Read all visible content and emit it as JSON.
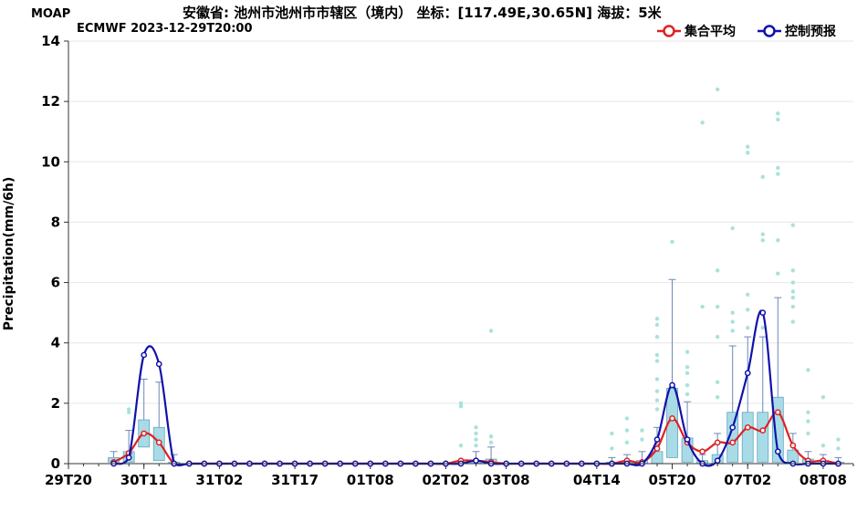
{
  "header": {
    "brand": "MOAP",
    "title": "安徽省: 池州市池州市市辖区（境内） 坐标：[117.49E,30.65N] 海拔：5米",
    "subtitle": "ECMWF 2023-12-29T20:00"
  },
  "legend": [
    {
      "name": "集合平均",
      "color": "#dd2222"
    },
    {
      "name": "控制预报",
      "color": "#1111aa"
    }
  ],
  "colors": {
    "box_fill": "#a8dbe6",
    "box_stroke": "#5fa6c2",
    "whisker": "#6b88b8",
    "outlier": "#a9e2da",
    "grid": "#e6e6e6"
  },
  "chart_data": {
    "type": "box-line",
    "ylabel": "Precipitation(mm/6h)",
    "ylim": [
      0,
      14
    ],
    "yticks": [
      0,
      2,
      4,
      6,
      8,
      10,
      12,
      14
    ],
    "xlim": [
      0,
      52
    ],
    "xtick_labels": [
      {
        "x": 0,
        "label": "29T20"
      },
      {
        "x": 5,
        "label": "30T11"
      },
      {
        "x": 10,
        "label": "31T02"
      },
      {
        "x": 15,
        "label": "31T17"
      },
      {
        "x": 20,
        "label": "01T08"
      },
      {
        "x": 25,
        "label": "02T02"
      },
      {
        "x": 29,
        "label": "03T08"
      },
      {
        "x": 35,
        "label": "04T14"
      },
      {
        "x": 40,
        "label": "05T20"
      },
      {
        "x": 45,
        "label": "07T02"
      },
      {
        "x": 50,
        "label": "08T08"
      }
    ],
    "boxes": [
      {
        "x": 3,
        "q1": 0.05,
        "q3": 0.2,
        "wlow": 0,
        "whigh": 0.4,
        "outliers": []
      },
      {
        "x": 4,
        "q1": 0.05,
        "q3": 0.4,
        "wlow": 0,
        "whigh": 1.1,
        "outliers": [
          1.7,
          1.8
        ]
      },
      {
        "x": 5,
        "q1": 0.55,
        "q3": 1.45,
        "wlow": 0.2,
        "whigh": 2.8,
        "outliers": [
          3.6
        ]
      },
      {
        "x": 6,
        "q1": 0.1,
        "q3": 1.2,
        "wlow": 0,
        "whigh": 2.7,
        "outliers": []
      },
      {
        "x": 7,
        "q1": 0,
        "q3": 0.05,
        "wlow": 0,
        "whigh": 0.3,
        "outliers": []
      },
      {
        "x": 26,
        "q1": 0,
        "q3": 0.05,
        "wlow": 0,
        "whigh": 0.1,
        "outliers": [
          0.6,
          1.9,
          2.0
        ]
      },
      {
        "x": 27,
        "q1": 0,
        "q3": 0.1,
        "wlow": 0,
        "whigh": 0.4,
        "outliers": [
          0.6,
          0.8,
          1.0,
          1.2
        ]
      },
      {
        "x": 28,
        "q1": 0,
        "q3": 0.15,
        "wlow": 0,
        "whigh": 0.55,
        "outliers": [
          0.7,
          0.9,
          4.4
        ]
      },
      {
        "x": 36,
        "q1": 0,
        "q3": 0.05,
        "wlow": 0,
        "whigh": 0.2,
        "outliers": [
          0.5,
          1.0
        ]
      },
      {
        "x": 37,
        "q1": 0,
        "q3": 0.05,
        "wlow": 0,
        "whigh": 0.3,
        "outliers": [
          0.7,
          1.1,
          1.5
        ]
      },
      {
        "x": 38,
        "q1": 0,
        "q3": 0.1,
        "wlow": 0,
        "whigh": 0.4,
        "outliers": [
          0.8,
          1.1
        ]
      },
      {
        "x": 39,
        "q1": 0,
        "q3": 0.4,
        "wlow": 0,
        "whigh": 1.2,
        "outliers": [
          1.8,
          2.1,
          2.4,
          2.8,
          3.4,
          3.6,
          4.2,
          4.6,
          4.8
        ]
      },
      {
        "x": 40,
        "q1": 0.2,
        "q3": 2.5,
        "wlow": 0,
        "whigh": 6.1,
        "outliers": [
          7.35
        ]
      },
      {
        "x": 41,
        "q1": 0.05,
        "q3": 0.85,
        "wlow": 0,
        "whigh": 2.05,
        "outliers": [
          2.3,
          2.6,
          3.0,
          3.2,
          3.7
        ]
      },
      {
        "x": 42,
        "q1": 0,
        "q3": 0.1,
        "wlow": 0,
        "whigh": 0.3,
        "outliers": [
          5.2,
          11.3
        ]
      },
      {
        "x": 43,
        "q1": 0,
        "q3": 0.3,
        "wlow": 0,
        "whigh": 1.0,
        "outliers": [
          2.2,
          2.7,
          4.2,
          5.2,
          6.4,
          12.4
        ]
      },
      {
        "x": 44,
        "q1": 0.05,
        "q3": 1.7,
        "wlow": 0,
        "whigh": 3.9,
        "outliers": [
          4.4,
          4.7,
          5.0,
          7.8
        ]
      },
      {
        "x": 45,
        "q1": 0.05,
        "q3": 1.7,
        "wlow": 0,
        "whigh": 4.2,
        "outliers": [
          4.5,
          5.1,
          5.6,
          10.3,
          10.5
        ]
      },
      {
        "x": 46,
        "q1": 0.05,
        "q3": 1.7,
        "wlow": 0,
        "whigh": 4.2,
        "outliers": [
          4.5,
          7.4,
          7.6,
          9.5
        ]
      },
      {
        "x": 47,
        "q1": 0.05,
        "q3": 2.2,
        "wlow": 0,
        "whigh": 5.5,
        "outliers": [
          6.3,
          7.4,
          9.6,
          9.8,
          11.4,
          11.6
        ]
      },
      {
        "x": 48,
        "q1": 0.05,
        "q3": 0.45,
        "wlow": 0,
        "whigh": 1.0,
        "outliers": [
          4.7,
          5.2,
          5.5,
          5.7,
          6.0,
          6.4,
          7.9
        ]
      },
      {
        "x": 49,
        "q1": 0,
        "q3": 0.15,
        "wlow": 0,
        "whigh": 0.4,
        "outliers": [
          1.0,
          1.4,
          1.7,
          3.1
        ]
      },
      {
        "x": 50,
        "q1": 0,
        "q3": 0.1,
        "wlow": 0,
        "whigh": 0.3,
        "outliers": [
          0.6,
          2.2
        ]
      },
      {
        "x": 51,
        "q1": 0,
        "q3": 0.05,
        "wlow": 0,
        "whigh": 0.2,
        "outliers": [
          0.5,
          0.8
        ]
      }
    ],
    "series": [
      {
        "name": "集合平均",
        "x": [
          3,
          4,
          5,
          6,
          7,
          8,
          9,
          10,
          11,
          12,
          13,
          14,
          15,
          16,
          17,
          18,
          19,
          20,
          21,
          22,
          23,
          24,
          25,
          26,
          27,
          28,
          29,
          30,
          31,
          32,
          33,
          34,
          35,
          36,
          37,
          38,
          39,
          40,
          41,
          42,
          43,
          44,
          45,
          46,
          47,
          48,
          49,
          50,
          51
        ],
        "values": [
          0.05,
          0.35,
          1.0,
          0.7,
          0,
          0,
          0,
          0,
          0,
          0,
          0,
          0,
          0,
          0,
          0,
          0,
          0,
          0,
          0,
          0,
          0,
          0,
          0,
          0.1,
          0.1,
          0.05,
          0,
          0,
          0,
          0,
          0,
          0,
          0,
          0,
          0.1,
          0.05,
          0.5,
          1.5,
          0.7,
          0.4,
          0.7,
          0.7,
          1.2,
          1.1,
          1.7,
          0.6,
          0.1,
          0.1,
          0
        ]
      },
      {
        "name": "控制预报",
        "x": [
          3,
          4,
          5,
          6,
          7,
          8,
          9,
          10,
          11,
          12,
          13,
          14,
          15,
          16,
          17,
          18,
          19,
          20,
          21,
          22,
          23,
          24,
          25,
          26,
          27,
          28,
          29,
          30,
          31,
          32,
          33,
          34,
          35,
          36,
          37,
          38,
          39,
          40,
          41,
          42,
          43,
          44,
          45,
          46,
          47,
          48,
          49,
          50,
          51
        ],
        "values": [
          0,
          0.2,
          3.6,
          3.3,
          0,
          0,
          0,
          0,
          0,
          0,
          0,
          0,
          0,
          0,
          0,
          0,
          0,
          0,
          0,
          0,
          0,
          0,
          0,
          0,
          0.1,
          0,
          0,
          0,
          0,
          0,
          0,
          0,
          0,
          0,
          0,
          0,
          0.8,
          2.6,
          0.8,
          0,
          0.1,
          1.2,
          3.0,
          5.0,
          0.4,
          0,
          0,
          0,
          0
        ]
      }
    ]
  }
}
